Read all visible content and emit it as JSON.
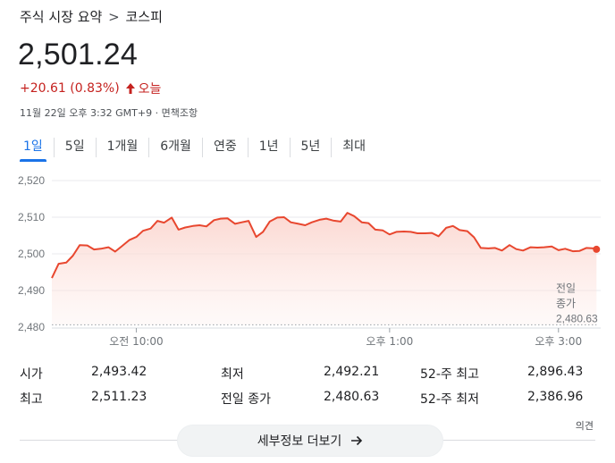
{
  "breadcrumb": {
    "parent": "주식 시장 요약",
    "separator": ">",
    "current": "코스피"
  },
  "quote": {
    "price": "2,501.24",
    "change": "+20.61 (0.83%)",
    "change_period": "오늘",
    "meta": "11월 22일 오후 3:32 GMT+9 · 면책조항"
  },
  "tabs": [
    {
      "label": "1일",
      "active": true
    },
    {
      "label": "5일"
    },
    {
      "label": "1개월"
    },
    {
      "label": "6개월"
    },
    {
      "label": "연중"
    },
    {
      "label": "1년"
    },
    {
      "label": "5년"
    },
    {
      "label": "최대"
    }
  ],
  "chart_data": {
    "type": "area",
    "y_ticks": [
      2480,
      2490,
      2500,
      2510,
      2520
    ],
    "y_tick_labels": [
      "2,480",
      "2,490",
      "2,500",
      "2,510",
      "2,520"
    ],
    "ylim": [
      2480,
      2520
    ],
    "x_ticks": [
      {
        "label": "오전 10:00",
        "t": 10.0
      },
      {
        "label": "오후 1:00",
        "t": 13.0
      },
      {
        "label": "오후 3:00",
        "t": 15.0
      }
    ],
    "xlim": [
      9.0,
      15.5
    ],
    "previous_close": {
      "label_line1": "전일",
      "label_line2": "종가",
      "value_label": "2,480.63",
      "value": 2480.63
    },
    "series": [
      {
        "color": "#e8472f",
        "points": [
          [
            9.0,
            2493.4
          ],
          [
            9.08,
            2497.3
          ],
          [
            9.17,
            2497.6
          ],
          [
            9.25,
            2499.5
          ],
          [
            9.33,
            2502.4
          ],
          [
            9.42,
            2502.3
          ],
          [
            9.5,
            2501.2
          ],
          [
            9.58,
            2501.4
          ],
          [
            9.67,
            2501.8
          ],
          [
            9.75,
            2500.6
          ],
          [
            9.83,
            2502.1
          ],
          [
            9.92,
            2503.8
          ],
          [
            10.0,
            2504.6
          ],
          [
            10.08,
            2506.3
          ],
          [
            10.17,
            2506.9
          ],
          [
            10.25,
            2509.0
          ],
          [
            10.33,
            2508.5
          ],
          [
            10.42,
            2509.9
          ],
          [
            10.5,
            2506.6
          ],
          [
            10.58,
            2507.2
          ],
          [
            10.67,
            2507.6
          ],
          [
            10.75,
            2507.8
          ],
          [
            10.83,
            2507.5
          ],
          [
            10.92,
            2509.2
          ],
          [
            11.0,
            2509.6
          ],
          [
            11.08,
            2509.7
          ],
          [
            11.17,
            2508.2
          ],
          [
            11.25,
            2508.6
          ],
          [
            11.33,
            2509.0
          ],
          [
            11.42,
            2504.6
          ],
          [
            11.5,
            2506.0
          ],
          [
            11.58,
            2508.8
          ],
          [
            11.67,
            2509.9
          ],
          [
            11.75,
            2510.0
          ],
          [
            11.83,
            2508.6
          ],
          [
            11.92,
            2508.2
          ],
          [
            12.0,
            2507.8
          ],
          [
            12.08,
            2508.6
          ],
          [
            12.17,
            2509.3
          ],
          [
            12.25,
            2509.6
          ],
          [
            12.33,
            2509.1
          ],
          [
            12.42,
            2508.8
          ],
          [
            12.5,
            2511.2
          ],
          [
            12.58,
            2510.3
          ],
          [
            12.67,
            2508.6
          ],
          [
            12.75,
            2508.4
          ],
          [
            12.83,
            2506.6
          ],
          [
            12.92,
            2506.4
          ],
          [
            13.0,
            2505.3
          ],
          [
            13.08,
            2506.0
          ],
          [
            13.17,
            2506.1
          ],
          [
            13.25,
            2506.0
          ],
          [
            13.33,
            2505.6
          ],
          [
            13.42,
            2505.6
          ],
          [
            13.5,
            2505.7
          ],
          [
            13.58,
            2504.8
          ],
          [
            13.67,
            2507.1
          ],
          [
            13.75,
            2507.6
          ],
          [
            13.83,
            2506.5
          ],
          [
            13.92,
            2506.2
          ],
          [
            14.0,
            2504.5
          ],
          [
            14.08,
            2501.6
          ],
          [
            14.17,
            2501.5
          ],
          [
            14.25,
            2501.6
          ],
          [
            14.33,
            2500.9
          ],
          [
            14.42,
            2502.4
          ],
          [
            14.5,
            2501.3
          ],
          [
            14.58,
            2500.9
          ],
          [
            14.67,
            2501.8
          ],
          [
            14.75,
            2501.7
          ],
          [
            14.83,
            2501.8
          ],
          [
            14.92,
            2502.0
          ],
          [
            15.0,
            2501.0
          ],
          [
            15.08,
            2501.4
          ],
          [
            15.17,
            2500.7
          ],
          [
            15.25,
            2500.8
          ],
          [
            15.33,
            2501.6
          ],
          [
            15.42,
            2501.5
          ],
          [
            15.45,
            2501.24
          ]
        ]
      }
    ]
  },
  "stats": [
    {
      "label": "시가",
      "value": "2,493.42"
    },
    {
      "label": "최저",
      "value": "2,492.21"
    },
    {
      "label": "52-주 최고",
      "value": "2,896.43"
    },
    {
      "label": "최고",
      "value": "2,511.23"
    },
    {
      "label": "전일 종가",
      "value": "2,480.63"
    },
    {
      "label": "52-주 최저",
      "value": "2,386.96"
    }
  ],
  "opinion_label": "의견",
  "more_button_label": "세부정보 더보기",
  "colors": {
    "accent": "#1a73e8",
    "negative_red": "#c5221f",
    "line": "#e8472f"
  }
}
